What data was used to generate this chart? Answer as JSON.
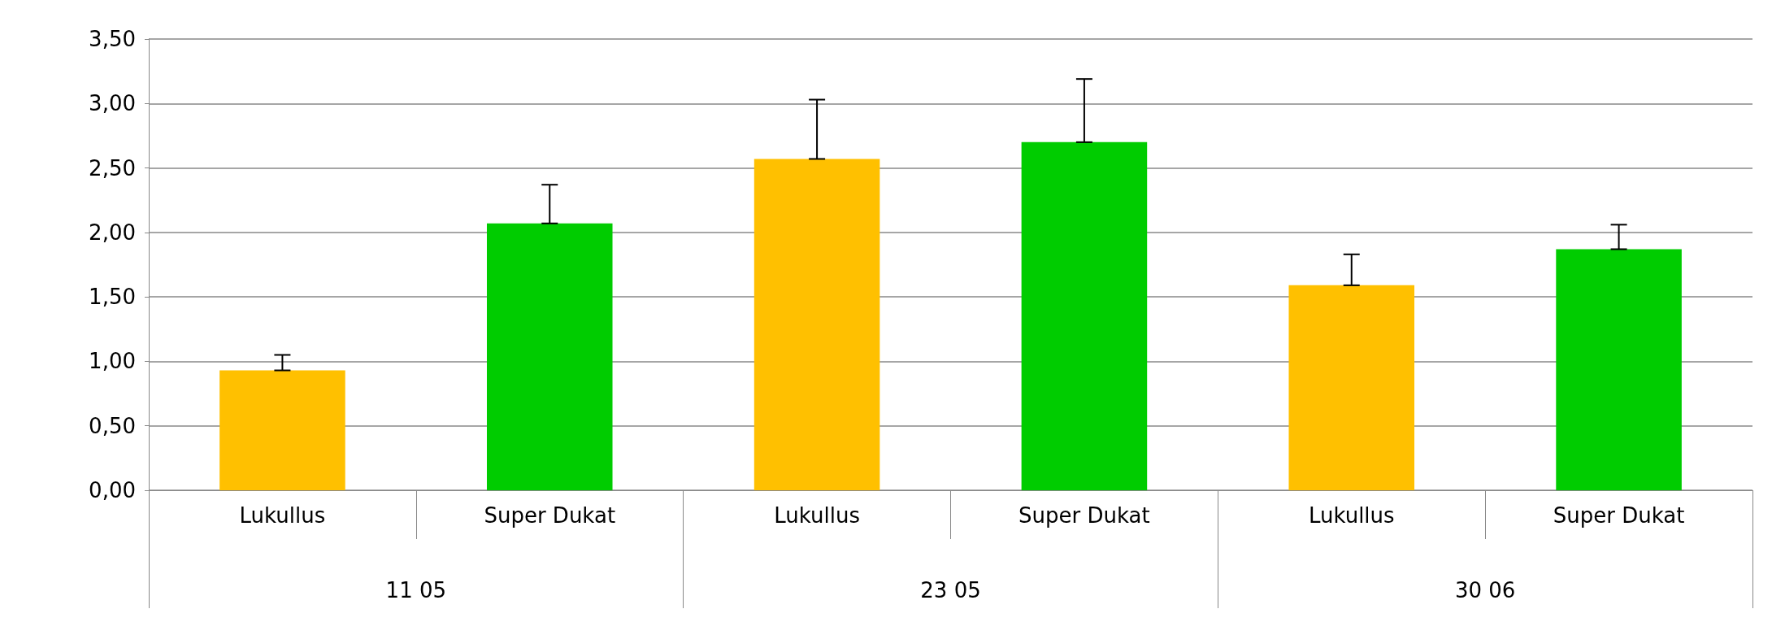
{
  "chart_data": {
    "type": "bar",
    "categories": [
      "Lukullus",
      "Super Dukat",
      "Lukullus",
      "Super Dukat",
      "Lukullus",
      "Super Dukat"
    ],
    "values": [
      0.93,
      2.07,
      2.57,
      2.7,
      1.59,
      1.87
    ],
    "colors": [
      "#ffc000",
      "#00cc00",
      "#ffc000",
      "#00cc00",
      "#ffc000",
      "#00cc00"
    ],
    "errors": [
      [
        0.93,
        1.05
      ],
      [
        2.07,
        2.37
      ],
      [
        2.57,
        3.03
      ],
      [
        2.7,
        3.19
      ],
      [
        1.59,
        1.83
      ],
      [
        1.87,
        2.06
      ]
    ],
    "annotations": [
      "11 05",
      "23 05",
      "30 06"
    ],
    "ylim": [
      0,
      3.5
    ],
    "yticks": [
      {
        "value": 0,
        "label": "0,00"
      },
      {
        "value": 0.5,
        "label": "0,50"
      },
      {
        "value": 1,
        "label": "1,00"
      },
      {
        "value": 1.5,
        "label": "1,50"
      },
      {
        "value": 2,
        "label": "2,00"
      },
      {
        "value": 2.5,
        "label": "2,50"
      },
      {
        "value": 3,
        "label": "3,00"
      },
      {
        "value": 3.5,
        "label": "3,50"
      }
    ],
    "grid": "y"
  }
}
